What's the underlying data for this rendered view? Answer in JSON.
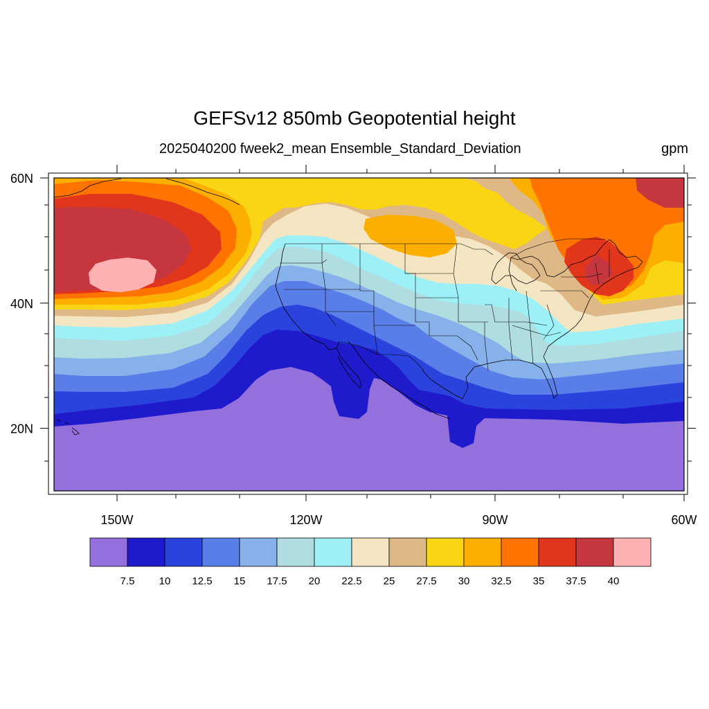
{
  "figure": {
    "title": "GEFSv12 850mb Geopotential height",
    "subtitle": "2025040200 fweek2_mean Ensemble_Standard_Deviation",
    "units": "gpm"
  },
  "map": {
    "projection": "cylindrical-equidistant",
    "lon_range": [
      -160,
      -60
    ],
    "lat_range": [
      10,
      60
    ],
    "lon_ticks": [
      {
        "value": -150,
        "label": "150W"
      },
      {
        "value": -120,
        "label": "120W"
      },
      {
        "value": -90,
        "label": "90W"
      },
      {
        "value": -60,
        "label": "60W"
      }
    ],
    "lat_ticks": [
      {
        "value": 60,
        "label": "60N"
      },
      {
        "value": 40,
        "label": "40N"
      },
      {
        "value": 20,
        "label": "20N"
      }
    ]
  },
  "colorbar": {
    "colors": [
      "#9370db",
      "#1f1acc",
      "#2a43dd",
      "#5a7ee8",
      "#86b1ea",
      "#afdde0",
      "#9ef0f7",
      "#f5e6c3",
      "#deb887",
      "#fad514",
      "#fdaf00",
      "#ff7400",
      "#e2361c",
      "#c6363f",
      "#ffb0b3"
    ],
    "labels": [
      "7.5",
      "10",
      "12.5",
      "15",
      "17.5",
      "20",
      "22.5",
      "25",
      "27.5",
      "30",
      "32.5",
      "35",
      "37.5",
      "40"
    ]
  }
}
